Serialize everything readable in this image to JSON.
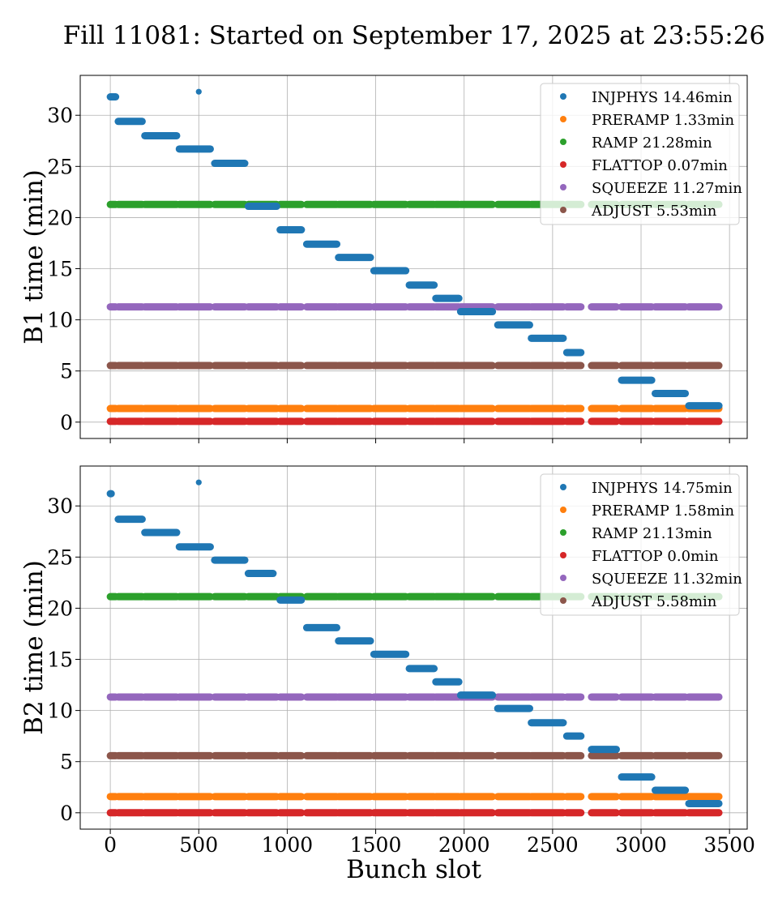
{
  "title": "Fill 11081: Started on September 17, 2025 at 23:55:26",
  "colors": {
    "INJPHYS": "#1f77b4",
    "PRERAMP": "#ff7f0e",
    "RAMP": "#2ca02c",
    "FLATTOP": "#d62728",
    "SQUEEZE": "#9467bd",
    "ADJUST": "#8c564b"
  },
  "chart_data": [
    {
      "type": "scatter",
      "ylabel": "B1 time (min)",
      "xlabel": "",
      "xlim": [
        -170,
        3600
      ],
      "ylim": [
        -1.6,
        33.9
      ],
      "xticks": [
        0,
        500,
        1000,
        1500,
        2000,
        2500,
        3000,
        3500
      ],
      "xtick_labels_visible": false,
      "yticks": [
        0,
        5,
        10,
        15,
        20,
        25,
        30
      ],
      "grid": true,
      "legend_position": "top-right",
      "legend": [
        {
          "phase": "INJPHYS",
          "label": "INJPHYS 14.46min"
        },
        {
          "phase": "PRERAMP",
          "label": "PRERAMP 1.33min"
        },
        {
          "phase": "RAMP",
          "label": "RAMP 21.28min"
        },
        {
          "phase": "FLATTOP",
          "label": "FLATTOP 0.07min"
        },
        {
          "phase": "SQUEEZE",
          "label": "SQUEEZE 11.27min"
        },
        {
          "phase": "ADJUST",
          "label": "ADJUST 5.53min"
        }
      ],
      "injphys_points": [
        {
          "x_start": 0,
          "x_end": 30,
          "y": 31.8
        },
        {
          "x_start": 500,
          "x_end": 500,
          "y": 32.3
        }
      ],
      "injphys_segments": [
        {
          "x_start": 45,
          "x_end": 180,
          "y": 29.4
        },
        {
          "x_start": 195,
          "x_end": 375,
          "y": 28.0
        },
        {
          "x_start": 390,
          "x_end": 565,
          "y": 26.7
        },
        {
          "x_start": 590,
          "x_end": 760,
          "y": 25.3
        },
        {
          "x_start": 780,
          "x_end": 940,
          "y": 21.1
        },
        {
          "x_start": 960,
          "x_end": 1080,
          "y": 18.8
        },
        {
          "x_start": 1110,
          "x_end": 1280,
          "y": 17.4
        },
        {
          "x_start": 1290,
          "x_end": 1470,
          "y": 16.1
        },
        {
          "x_start": 1490,
          "x_end": 1670,
          "y": 14.8
        },
        {
          "x_start": 1690,
          "x_end": 1830,
          "y": 13.4
        },
        {
          "x_start": 1840,
          "x_end": 1970,
          "y": 12.1
        },
        {
          "x_start": 1980,
          "x_end": 2160,
          "y": 10.8
        },
        {
          "x_start": 2190,
          "x_end": 2370,
          "y": 9.5
        },
        {
          "x_start": 2380,
          "x_end": 2560,
          "y": 8.2
        },
        {
          "x_start": 2580,
          "x_end": 2660,
          "y": 6.8
        },
        {
          "x_start": 2890,
          "x_end": 3060,
          "y": 4.1
        },
        {
          "x_start": 3080,
          "x_end": 3250,
          "y": 2.8
        },
        {
          "x_start": 3270,
          "x_end": 3440,
          "y": 1.6
        }
      ],
      "flat_series": [
        {
          "phase": "RAMP",
          "y": 21.28
        },
        {
          "phase": "SQUEEZE",
          "y": 11.27
        },
        {
          "phase": "ADJUST",
          "y": 5.53
        },
        {
          "phase": "PRERAMP",
          "y": 1.33
        },
        {
          "phase": "FLATTOP",
          "y": 0.07
        }
      ]
    },
    {
      "type": "scatter",
      "ylabel": "B2 time (min)",
      "xlabel": "Bunch slot",
      "xlim": [
        -170,
        3600
      ],
      "ylim": [
        -1.6,
        33.9
      ],
      "xticks": [
        0,
        500,
        1000,
        1500,
        2000,
        2500,
        3000,
        3500
      ],
      "xtick_labels_visible": true,
      "yticks": [
        0,
        5,
        10,
        15,
        20,
        25,
        30
      ],
      "grid": true,
      "legend_position": "top-right",
      "legend": [
        {
          "phase": "INJPHYS",
          "label": "INJPHYS 14.75min"
        },
        {
          "phase": "PRERAMP",
          "label": "PRERAMP 1.58min"
        },
        {
          "phase": "RAMP",
          "label": "RAMP 21.13min"
        },
        {
          "phase": "FLATTOP",
          "label": "FLATTOP 0.0min"
        },
        {
          "phase": "SQUEEZE",
          "label": "SQUEEZE 11.32min"
        },
        {
          "phase": "ADJUST",
          "label": "ADJUST 5.58min"
        }
      ],
      "injphys_points": [
        {
          "x_start": 0,
          "x_end": 5,
          "y": 31.2
        },
        {
          "x_start": 500,
          "x_end": 500,
          "y": 32.3
        }
      ],
      "injphys_segments": [
        {
          "x_start": 45,
          "x_end": 180,
          "y": 28.7
        },
        {
          "x_start": 195,
          "x_end": 375,
          "y": 27.4
        },
        {
          "x_start": 390,
          "x_end": 565,
          "y": 26.0
        },
        {
          "x_start": 590,
          "x_end": 760,
          "y": 24.7
        },
        {
          "x_start": 780,
          "x_end": 920,
          "y": 23.4
        },
        {
          "x_start": 960,
          "x_end": 1080,
          "y": 20.8
        },
        {
          "x_start": 1110,
          "x_end": 1280,
          "y": 18.1
        },
        {
          "x_start": 1290,
          "x_end": 1470,
          "y": 16.8
        },
        {
          "x_start": 1490,
          "x_end": 1670,
          "y": 15.5
        },
        {
          "x_start": 1690,
          "x_end": 1830,
          "y": 14.1
        },
        {
          "x_start": 1840,
          "x_end": 1970,
          "y": 12.8
        },
        {
          "x_start": 1980,
          "x_end": 2160,
          "y": 11.5
        },
        {
          "x_start": 2190,
          "x_end": 2370,
          "y": 10.2
        },
        {
          "x_start": 2380,
          "x_end": 2560,
          "y": 8.8
        },
        {
          "x_start": 2580,
          "x_end": 2660,
          "y": 7.5
        },
        {
          "x_start": 2720,
          "x_end": 2860,
          "y": 6.2
        },
        {
          "x_start": 2890,
          "x_end": 3060,
          "y": 3.5
        },
        {
          "x_start": 3080,
          "x_end": 3250,
          "y": 2.2
        },
        {
          "x_start": 3270,
          "x_end": 3440,
          "y": 0.9
        }
      ],
      "flat_series": [
        {
          "phase": "RAMP",
          "y": 21.13
        },
        {
          "phase": "SQUEEZE",
          "y": 11.32
        },
        {
          "phase": "ADJUST",
          "y": 5.58
        },
        {
          "phase": "PRERAMP",
          "y": 1.58
        },
        {
          "phase": "FLATTOP",
          "y": 0.0
        }
      ]
    }
  ],
  "filled_bunch_trains": [
    [
      0,
      30
    ],
    [
      45,
      180
    ],
    [
      195,
      375
    ],
    [
      390,
      565
    ],
    [
      590,
      760
    ],
    [
      780,
      940
    ],
    [
      960,
      1080
    ],
    [
      1110,
      1280
    ],
    [
      1290,
      1470
    ],
    [
      1490,
      1670
    ],
    [
      1690,
      1830
    ],
    [
      1840,
      1970
    ],
    [
      1980,
      2160
    ],
    [
      2190,
      2370
    ],
    [
      2380,
      2560
    ],
    [
      2580,
      2660
    ],
    [
      2720,
      2860
    ],
    [
      2890,
      3060
    ],
    [
      3080,
      3250
    ],
    [
      3270,
      3440
    ]
  ]
}
